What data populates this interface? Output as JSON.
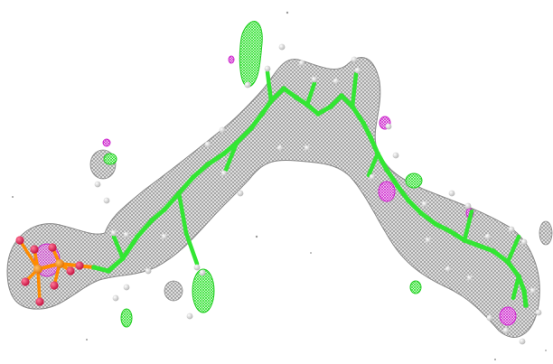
{
  "scene": {
    "subject": "molecular-structure-with-density-mesh",
    "colors": {
      "background": "#ffffff",
      "density_mesh": "#8c8c8c",
      "carbon_backbone": "#33e633",
      "positive_density": "#22dd22",
      "negative_density": "#cc22cc",
      "hydrogen": "#d9d9d9",
      "oxygen": "#e6194b",
      "phosphorus": "#ff8c00"
    }
  }
}
